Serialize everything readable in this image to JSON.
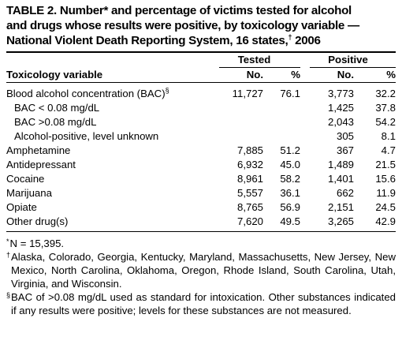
{
  "title": {
    "line1": "TABLE 2. Number* and percentage of victims tested for alcohol",
    "line2": "and drugs whose results were positive, by toxicology variable —",
    "line3_pre": "National Violent Death Reporting System, 16 states,",
    "line3_mark": "†",
    "line3_post": " 2006"
  },
  "table": {
    "group_headers": {
      "tested": "Tested",
      "positive": "Positive"
    },
    "column_headers": {
      "variable": "Toxicology variable",
      "tested_no": "No.",
      "tested_pct": "%",
      "positive_no": "No.",
      "positive_pct": "%"
    },
    "rows": [
      {
        "label": "Blood alcohol concentration (BAC)",
        "mark": "§",
        "tested_no": "11,727",
        "tested_pct": "76.1",
        "positive_no": "3,773",
        "positive_pct": "32.2"
      },
      {
        "label": "BAC < 0.08 mg/dL",
        "tested_no": "",
        "tested_pct": "",
        "positive_no": "1,425",
        "positive_pct": "37.8"
      },
      {
        "label": "BAC >0.08 mg/dL",
        "tested_no": "",
        "tested_pct": "",
        "positive_no": "2,043",
        "positive_pct": "54.2"
      },
      {
        "label": "Alcohol-positive, level unknown",
        "tested_no": "",
        "tested_pct": "",
        "positive_no": "305",
        "positive_pct": "8.1"
      },
      {
        "label": "Amphetamine",
        "tested_no": "7,885",
        "tested_pct": "51.2",
        "positive_no": "367",
        "positive_pct": "4.7"
      },
      {
        "label": "Antidepressant",
        "tested_no": "6,932",
        "tested_pct": "45.0",
        "positive_no": "1,489",
        "positive_pct": "21.5"
      },
      {
        "label": "Cocaine",
        "tested_no": "8,961",
        "tested_pct": "58.2",
        "positive_no": "1,401",
        "positive_pct": "15.6"
      },
      {
        "label": "Marijuana",
        "tested_no": "5,557",
        "tested_pct": "36.1",
        "positive_no": "662",
        "positive_pct": "11.9"
      },
      {
        "label": "Opiate",
        "tested_no": "8,765",
        "tested_pct": "56.9",
        "positive_no": "2,151",
        "positive_pct": "24.5"
      },
      {
        "label": "Other drug(s)",
        "tested_no": "7,620",
        "tested_pct": "49.5",
        "positive_no": "3,265",
        "positive_pct": "42.9"
      }
    ]
  },
  "footnotes": {
    "n": {
      "mark": "*",
      "text": "N = 15,395."
    },
    "states": {
      "mark": "†",
      "text": "Alaska, Colorado, Georgia, Kentucky, Maryland, Massachusetts, New Jersey, New Mexico, North Carolina, Oklahoma, Oregon, Rhode Island, South Carolina, Utah, Virginia, and Wisconsin."
    },
    "bac": {
      "mark": "§",
      "text": "BAC of >0.08 mg/dL used as standard for intoxication. Other substances indicated if any results were positive; levels for these substances are not measured."
    }
  }
}
